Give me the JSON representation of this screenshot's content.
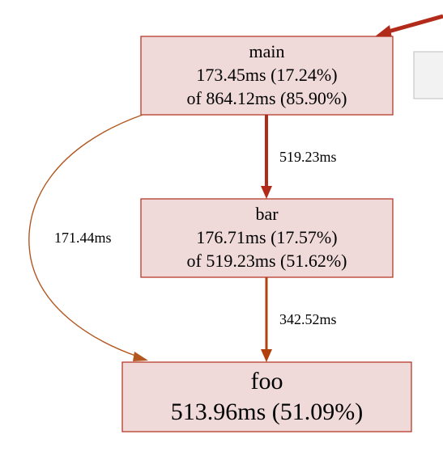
{
  "colors": {
    "node_fill": "#efd9d9",
    "node_border": "#b22b1a",
    "edge_dark_red": "#b22b1a",
    "edge_brown": "#b2571f",
    "edge_orange": "#b2400a"
  },
  "nodes": {
    "main": {
      "name": "main",
      "self": "173.45ms (17.24%)",
      "cumulative": "of 864.12ms (85.90%)"
    },
    "bar": {
      "name": "bar",
      "self": "176.71ms (17.57%)",
      "cumulative": "of 519.23ms (51.62%)"
    },
    "foo": {
      "name": "foo",
      "self": "513.96ms (51.09%)"
    }
  },
  "edges": {
    "main_to_bar": "519.23ms",
    "bar_to_foo": "342.52ms",
    "main_to_foo": "171.44ms"
  }
}
